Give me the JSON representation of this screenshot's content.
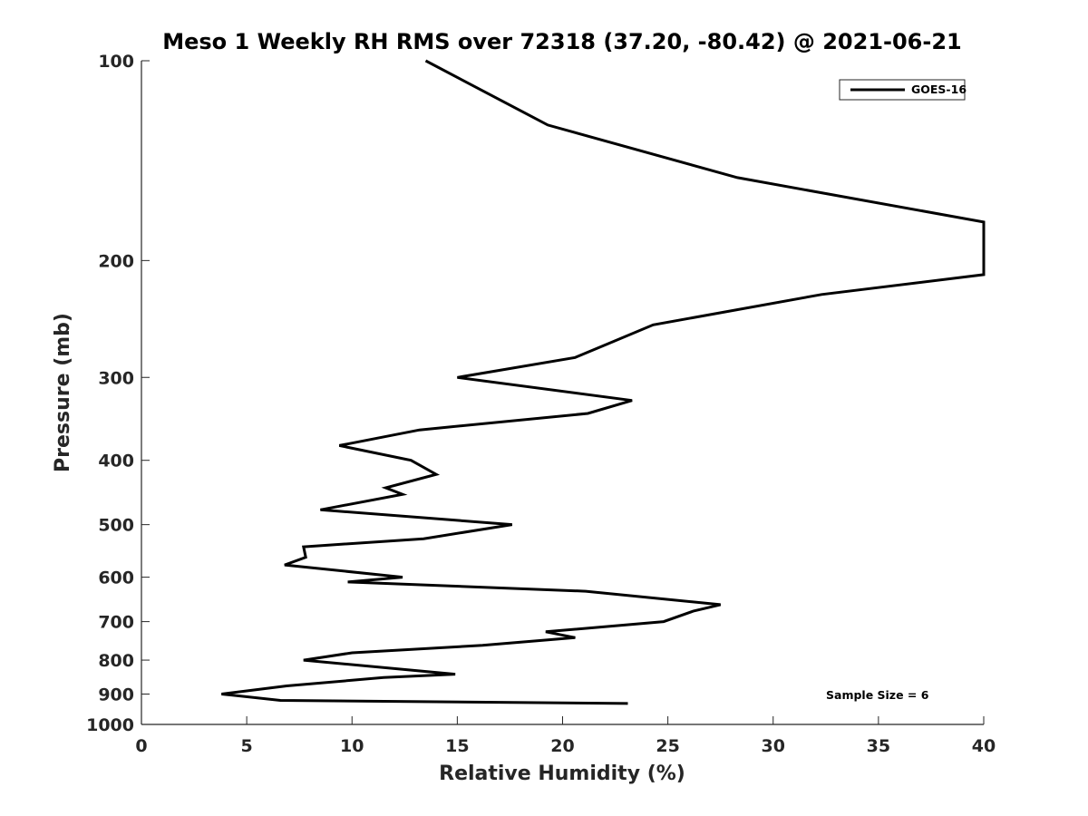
{
  "chart_data": {
    "type": "line",
    "title": "Meso 1 Weekly RH RMS over 72318 (37.20, -80.42) @ 2021-06-21",
    "xlabel": "Relative Humidity (%)",
    "ylabel": "Pressure (mb)",
    "xlim": [
      0,
      40
    ],
    "ylim": [
      100,
      1000
    ],
    "yscale": "log",
    "y_inverted": true,
    "x_ticks": [
      0,
      5,
      10,
      15,
      20,
      25,
      30,
      35,
      40
    ],
    "y_ticks": [
      100,
      200,
      300,
      400,
      500,
      600,
      700,
      800,
      900,
      1000
    ],
    "grid": false,
    "legend_position": "top-right",
    "annotation": "Sample Size = 6",
    "series": [
      {
        "name": "GOES-16",
        "color": "#000000",
        "points": [
          [
            13.5,
            100
          ],
          [
            19.3,
            125
          ],
          [
            28.3,
            150
          ],
          [
            40.0,
            175
          ],
          [
            40.0,
            210
          ],
          [
            32.3,
            225
          ],
          [
            24.3,
            250
          ],
          [
            20.6,
            280
          ],
          [
            15.0,
            300
          ],
          [
            23.3,
            325
          ],
          [
            21.2,
            340
          ],
          [
            13.2,
            360
          ],
          [
            9.4,
            380
          ],
          [
            12.8,
            400
          ],
          [
            14.0,
            420
          ],
          [
            11.6,
            440
          ],
          [
            12.4,
            450
          ],
          [
            8.5,
            475
          ],
          [
            17.6,
            500
          ],
          [
            13.4,
            525
          ],
          [
            7.7,
            540
          ],
          [
            7.8,
            560
          ],
          [
            6.8,
            575
          ],
          [
            12.4,
            600
          ],
          [
            9.8,
            610
          ],
          [
            21.1,
            630
          ],
          [
            27.5,
            660
          ],
          [
            26.2,
            675
          ],
          [
            24.8,
            700
          ],
          [
            19.2,
            725
          ],
          [
            20.6,
            740
          ],
          [
            16.2,
            760
          ],
          [
            10.0,
            780
          ],
          [
            7.7,
            800
          ],
          [
            14.9,
            840
          ],
          [
            11.5,
            850
          ],
          [
            6.9,
            875
          ],
          [
            3.8,
            900
          ],
          [
            6.6,
            920
          ],
          [
            23.1,
            930
          ]
        ]
      }
    ]
  }
}
